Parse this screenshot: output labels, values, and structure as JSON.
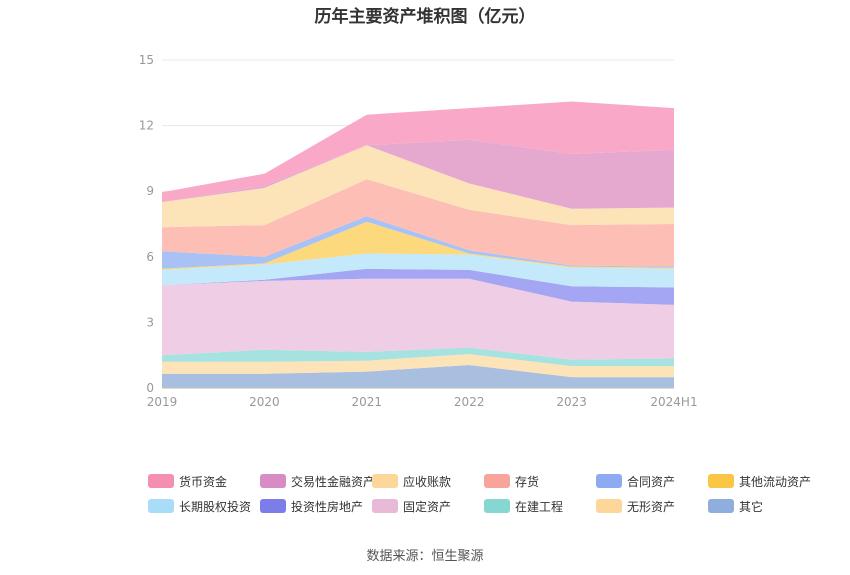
{
  "chart_data": {
    "type": "area",
    "stacked": true,
    "title": "历年主要资产堆积图（亿元）",
    "source": "数据来源：恒生聚源",
    "x": [
      "2019",
      "2020",
      "2021",
      "2022",
      "2023",
      "2024H1"
    ],
    "ylim": [
      0,
      15
    ],
    "yticks": [
      0,
      3,
      6,
      9,
      12,
      15
    ],
    "grid": true,
    "legend_position": "bottom",
    "series": [
      {
        "name": "其它",
        "color": "#a8bfe0",
        "values": [
          0.65,
          0.65,
          0.75,
          1.05,
          0.5,
          0.5
        ]
      },
      {
        "name": "无形资产",
        "color": "#fde3b8",
        "values": [
          0.55,
          0.55,
          0.5,
          0.5,
          0.5,
          0.5
        ]
      },
      {
        "name": "在建工程",
        "color": "#a6e3e0",
        "values": [
          0.3,
          0.55,
          0.4,
          0.3,
          0.3,
          0.35
        ]
      },
      {
        "name": "固定资产",
        "color": "#efcde5",
        "values": [
          3.2,
          3.15,
          3.35,
          3.15,
          2.65,
          2.45
        ]
      },
      {
        "name": "投资性房地产",
        "color": "#a4a6f3",
        "values": [
          0.0,
          0.05,
          0.45,
          0.4,
          0.7,
          0.8
        ]
      },
      {
        "name": "长期股权投资",
        "color": "#c4e9fb",
        "values": [
          0.7,
          0.7,
          0.7,
          0.7,
          0.85,
          0.85
        ]
      },
      {
        "name": "其他流动资产",
        "color": "#fdd97e",
        "values": [
          0.05,
          0.05,
          1.45,
          0.05,
          0.05,
          0.05
        ]
      },
      {
        "name": "合同资产",
        "color": "#a8c2f6",
        "values": [
          0.8,
          0.3,
          0.25,
          0.15,
          0.05,
          0.05
        ]
      },
      {
        "name": "存货",
        "color": "#fdbfb5",
        "values": [
          1.1,
          1.45,
          1.7,
          1.85,
          1.85,
          1.95
        ]
      },
      {
        "name": "应收账款",
        "color": "#fde3b8",
        "values": [
          1.15,
          1.7,
          1.55,
          1.2,
          0.75,
          0.75
        ]
      },
      {
        "name": "交易性金融资产",
        "color": "#e5a9d0",
        "values": [
          0.0,
          0.1,
          0.0,
          2.0,
          2.5,
          2.65
        ]
      },
      {
        "name": "货币资金",
        "color": "#f9a8c8",
        "values": [
          0.45,
          0.55,
          1.4,
          1.45,
          2.4,
          1.9
        ]
      }
    ]
  },
  "legend": [
    {
      "label": "货币资金",
      "color": "#f58fb1"
    },
    {
      "label": "交易性金融资产",
      "color": "#d88cc4"
    },
    {
      "label": "应收账款",
      "color": "#fdd79a"
    },
    {
      "label": "存货",
      "color": "#f9a49a"
    },
    {
      "label": "合同资产",
      "color": "#8eaaf2"
    },
    {
      "label": "其他流动资产",
      "color": "#fbc545"
    },
    {
      "label": "长期股权投资",
      "color": "#a9dcf7"
    },
    {
      "label": "投资性房地产",
      "color": "#7b7de9"
    },
    {
      "label": "固定资产",
      "color": "#e9b9d8"
    },
    {
      "label": "在建工程",
      "color": "#86d6d2"
    },
    {
      "label": "无形资产",
      "color": "#fdd79a"
    },
    {
      "label": "其它",
      "color": "#8faedd"
    }
  ]
}
